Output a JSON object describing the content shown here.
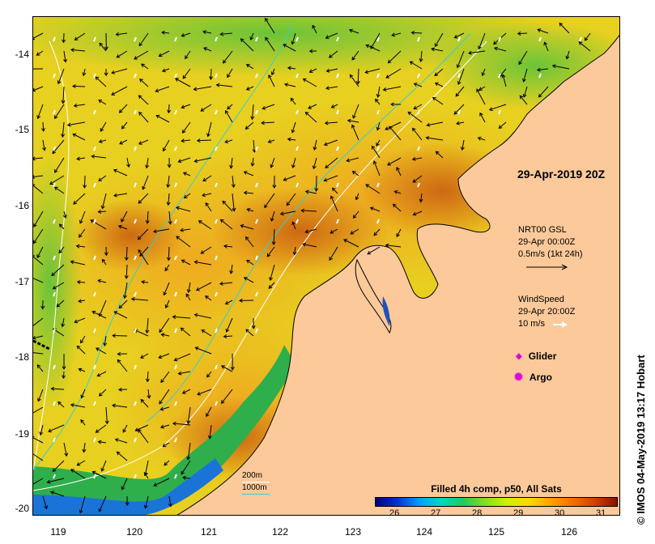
{
  "map": {
    "stamp": "29-Apr-2019 20Z",
    "credit": "© IMOS 04-May-2019 13:17 Hobart",
    "lat_labels": [
      "-14",
      "-15",
      "-16",
      "-17",
      "-18",
      "-19",
      "-20"
    ],
    "lon_labels": [
      "119",
      "120",
      "121",
      "122",
      "123",
      "124",
      "125",
      "126"
    ]
  },
  "legend": {
    "currents_title": "NRT00 GSL",
    "currents_date": "29-Apr 00:00Z",
    "currents_scale": "0.5m/s (1kt 24h)",
    "wind_title": "WindSpeed",
    "wind_date": "29-Apr 20:00Z",
    "wind_scale": "10 m/s",
    "glider": "Glider",
    "argo": "Argo",
    "contour_200": "200m",
    "contour_1000": "1000m"
  },
  "colorbar": {
    "title": "Filled 4h comp, p50, All Sats",
    "ticks": [
      "26",
      "27",
      "28",
      "29",
      "30",
      "31"
    ],
    "colors": [
      "#00007f",
      "#0033cc",
      "#00a0ff",
      "#00d8c0",
      "#22c860",
      "#88dd22",
      "#d0f000",
      "#ffd800",
      "#ffa000",
      "#f07000",
      "#d04000",
      "#8a1000"
    ]
  }
}
